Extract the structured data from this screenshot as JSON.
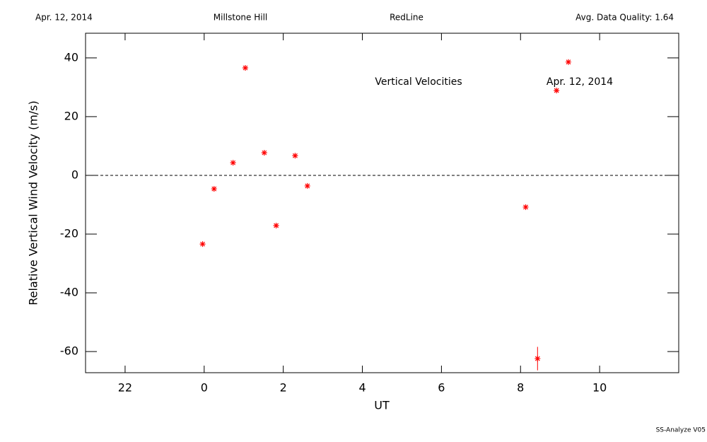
{
  "header": {
    "date": "Apr. 12, 2014",
    "site": "Millstone Hill",
    "instrument": "RedLine",
    "quality": "Avg. Data Quality: 1.64"
  },
  "chart_data": {
    "type": "scatter",
    "xlabel": "UT",
    "ylabel": "Relative Vertical Wind Velocity (m/s)",
    "annotations": [
      "Vertical Velocities",
      "Apr. 12, 2014"
    ],
    "xlim": [
      -3,
      12
    ],
    "ylim": [
      -67.2,
      48.4
    ],
    "xticks": [
      {
        "value": -2,
        "label": "22"
      },
      0,
      2,
      4,
      6,
      8,
      10
    ],
    "yticks": [
      -60,
      -40,
      -20,
      0,
      20,
      40
    ],
    "hline": 0,
    "color": "#ff0000",
    "x": [
      -0.04,
      0.25,
      0.73,
      1.04,
      1.52,
      1.82,
      2.3,
      2.61,
      8.13,
      8.43,
      8.91,
      9.21
    ],
    "values": [
      -23.4,
      -4.6,
      4.3,
      36.6,
      7.7,
      -17.1,
      6.7,
      -3.6,
      -10.8,
      -62.4,
      28.9,
      38.6
    ],
    "errors": [
      null,
      null,
      null,
      null,
      null,
      null,
      null,
      null,
      null,
      4,
      null,
      null
    ]
  },
  "footer": "SS-Analyze V05"
}
